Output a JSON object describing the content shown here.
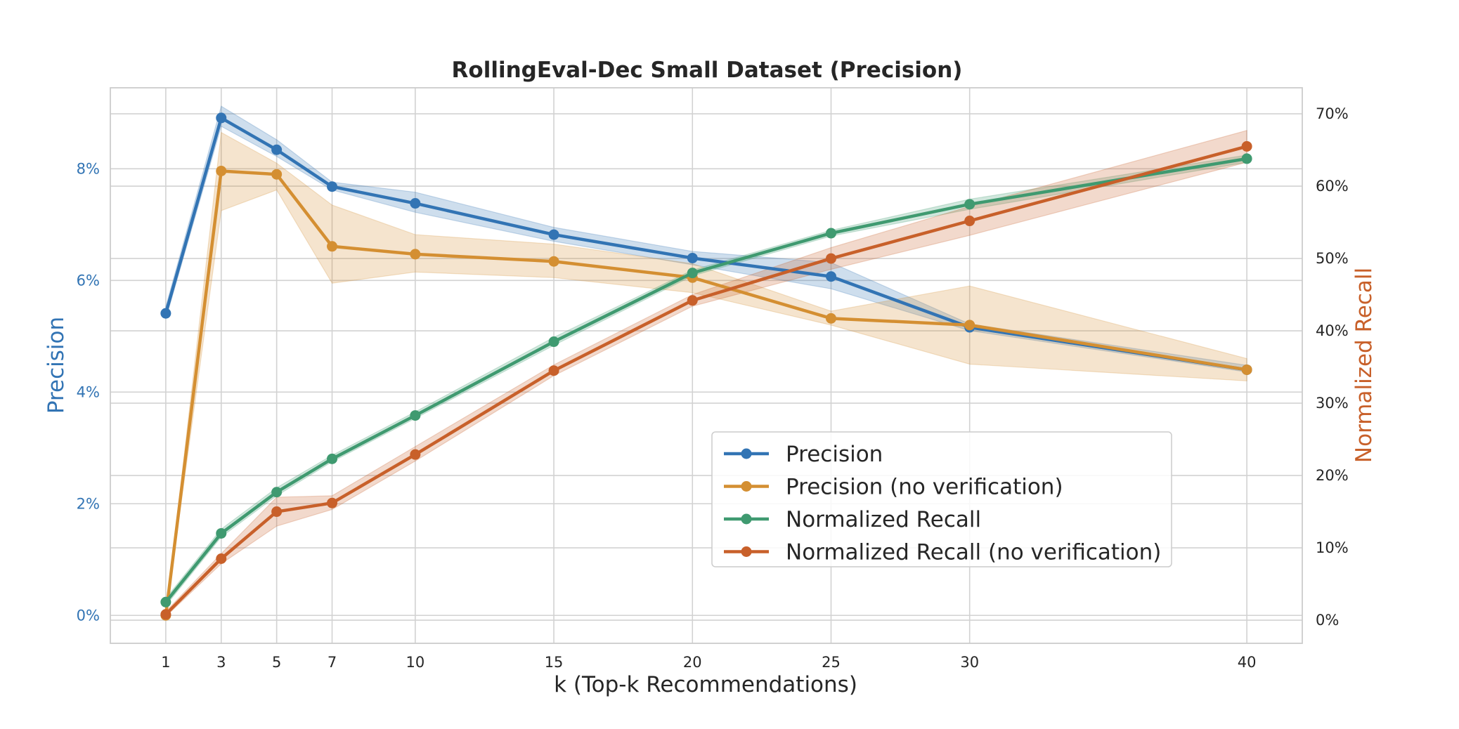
{
  "chart_data": {
    "type": "line",
    "title": "RollingEval-Dec Small Dataset (Precision)",
    "xlabel": "k (Top-k Recommendations)",
    "ylabel_left": "Precision",
    "ylabel_right": "Normalized Recall",
    "x": [
      1,
      3,
      5,
      7,
      10,
      15,
      20,
      25,
      30,
      40
    ],
    "x_tick_labels": [
      "1",
      "3",
      "5",
      "7",
      "10",
      "15",
      "20",
      "25",
      "30",
      "40"
    ],
    "xlim": [
      -1,
      42
    ],
    "ylim_left": [
      -0.005,
      0.0945
    ],
    "ylim_right": [
      -0.032,
      0.736
    ],
    "y_left_ticks": [
      0,
      0.02,
      0.04,
      0.06,
      0.08
    ],
    "y_left_tick_labels": [
      "0%",
      "2%",
      "4%",
      "6%",
      "8%"
    ],
    "y_right_ticks": [
      0,
      0.1,
      0.2,
      0.3,
      0.4,
      0.5,
      0.6,
      0.7
    ],
    "y_right_tick_labels": [
      "0%",
      "10%",
      "20%",
      "30%",
      "40%",
      "50%",
      "60%",
      "70%"
    ],
    "grid": true,
    "legend_position": "lower-right",
    "series": [
      {
        "name": "Precision",
        "axis": "left",
        "color": "#3274b4",
        "values": [
          0.0541,
          0.0891,
          0.0834,
          0.0768,
          0.0738,
          0.0682,
          0.064,
          0.0607,
          0.0516,
          0.044
        ],
        "band_low": [
          0.0531,
          0.0876,
          0.0822,
          0.0762,
          0.0722,
          0.067,
          0.0628,
          0.0585,
          0.051,
          0.0436
        ],
        "band_high": [
          0.0553,
          0.0912,
          0.0852,
          0.0776,
          0.0758,
          0.0695,
          0.0652,
          0.0632,
          0.0522,
          0.0448
        ]
      },
      {
        "name": "Precision (no verification)",
        "axis": "left",
        "color": "#d48f32",
        "values": [
          0.0,
          0.0796,
          0.079,
          0.0661,
          0.0647,
          0.0634,
          0.0605,
          0.0532,
          0.052,
          0.044
        ],
        "band_low": [
          0.0,
          0.0725,
          0.0762,
          0.0595,
          0.0615,
          0.0605,
          0.0578,
          0.052,
          0.045,
          0.042
        ],
        "band_high": [
          0.0,
          0.0865,
          0.081,
          0.0735,
          0.0682,
          0.0665,
          0.063,
          0.0545,
          0.059,
          0.046
        ]
      },
      {
        "name": "Normalized Recall",
        "axis": "right",
        "color": "#3f9a70",
        "values": [
          0.025,
          0.12,
          0.177,
          0.223,
          0.283,
          0.385,
          0.48,
          0.535,
          0.575,
          0.638
        ],
        "band_low": [
          0.02,
          0.115,
          0.172,
          0.219,
          0.279,
          0.38,
          0.476,
          0.531,
          0.568,
          0.633
        ],
        "band_high": [
          0.03,
          0.126,
          0.183,
          0.228,
          0.288,
          0.391,
          0.484,
          0.539,
          0.582,
          0.643
        ]
      },
      {
        "name": "Normalized Recall (no verification)",
        "axis": "right",
        "color": "#c8602a",
        "values": [
          0.008,
          0.085,
          0.15,
          0.162,
          0.229,
          0.345,
          0.442,
          0.5,
          0.552,
          0.655
        ],
        "band_low": [
          0.005,
          0.078,
          0.13,
          0.153,
          0.22,
          0.338,
          0.434,
          0.485,
          0.532,
          0.633
        ],
        "band_high": [
          0.012,
          0.092,
          0.17,
          0.172,
          0.24,
          0.353,
          0.45,
          0.515,
          0.572,
          0.677
        ]
      }
    ]
  }
}
